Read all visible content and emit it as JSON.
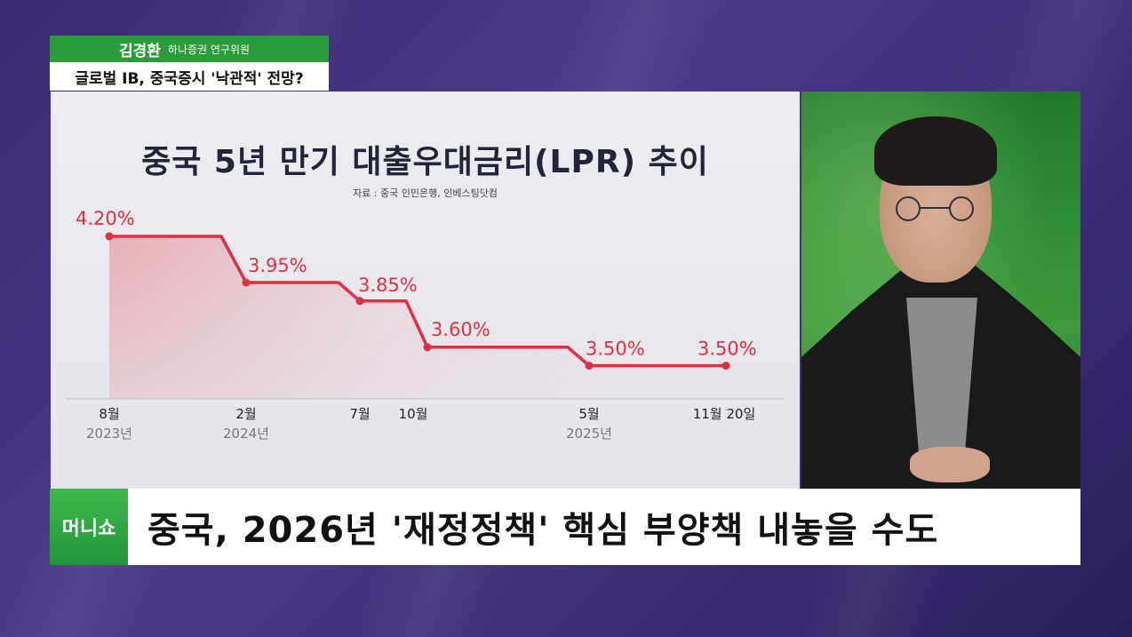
{
  "speaker": {
    "name": "김경환",
    "role": "하나증권 연구위원",
    "subtitle": "글로벌 IB, 중국증시 '낙관적' 전망?"
  },
  "chart_data": {
    "type": "line",
    "title": "중국 5년 만기 대출우대금리(LPR) 추이",
    "source": "자료 : 중국 인민은행, 인베스팅닷컴",
    "series": [
      {
        "values": [
          4.2,
          3.95,
          3.85,
          3.6,
          3.5,
          3.5
        ],
        "labels": [
          "4.20%",
          "3.95%",
          "3.85%",
          "3.60%",
          "3.50%",
          "3.50%"
        ]
      }
    ],
    "x_ticks": [
      {
        "month": "8월",
        "year": "2023년"
      },
      {
        "month": "2월",
        "year": "2024년"
      },
      {
        "month": "7월",
        "year": ""
      },
      {
        "month": "10월",
        "year": ""
      },
      {
        "month": "5월",
        "year": "2025년"
      },
      {
        "month": "11월 20일",
        "year": ""
      }
    ],
    "line_color": "#e0303e",
    "grid": false
  },
  "banner": {
    "logo": "머니쇼",
    "headline": "중국, 2026년 '재정정책' 핵심 부양책 내놓을 수도"
  }
}
